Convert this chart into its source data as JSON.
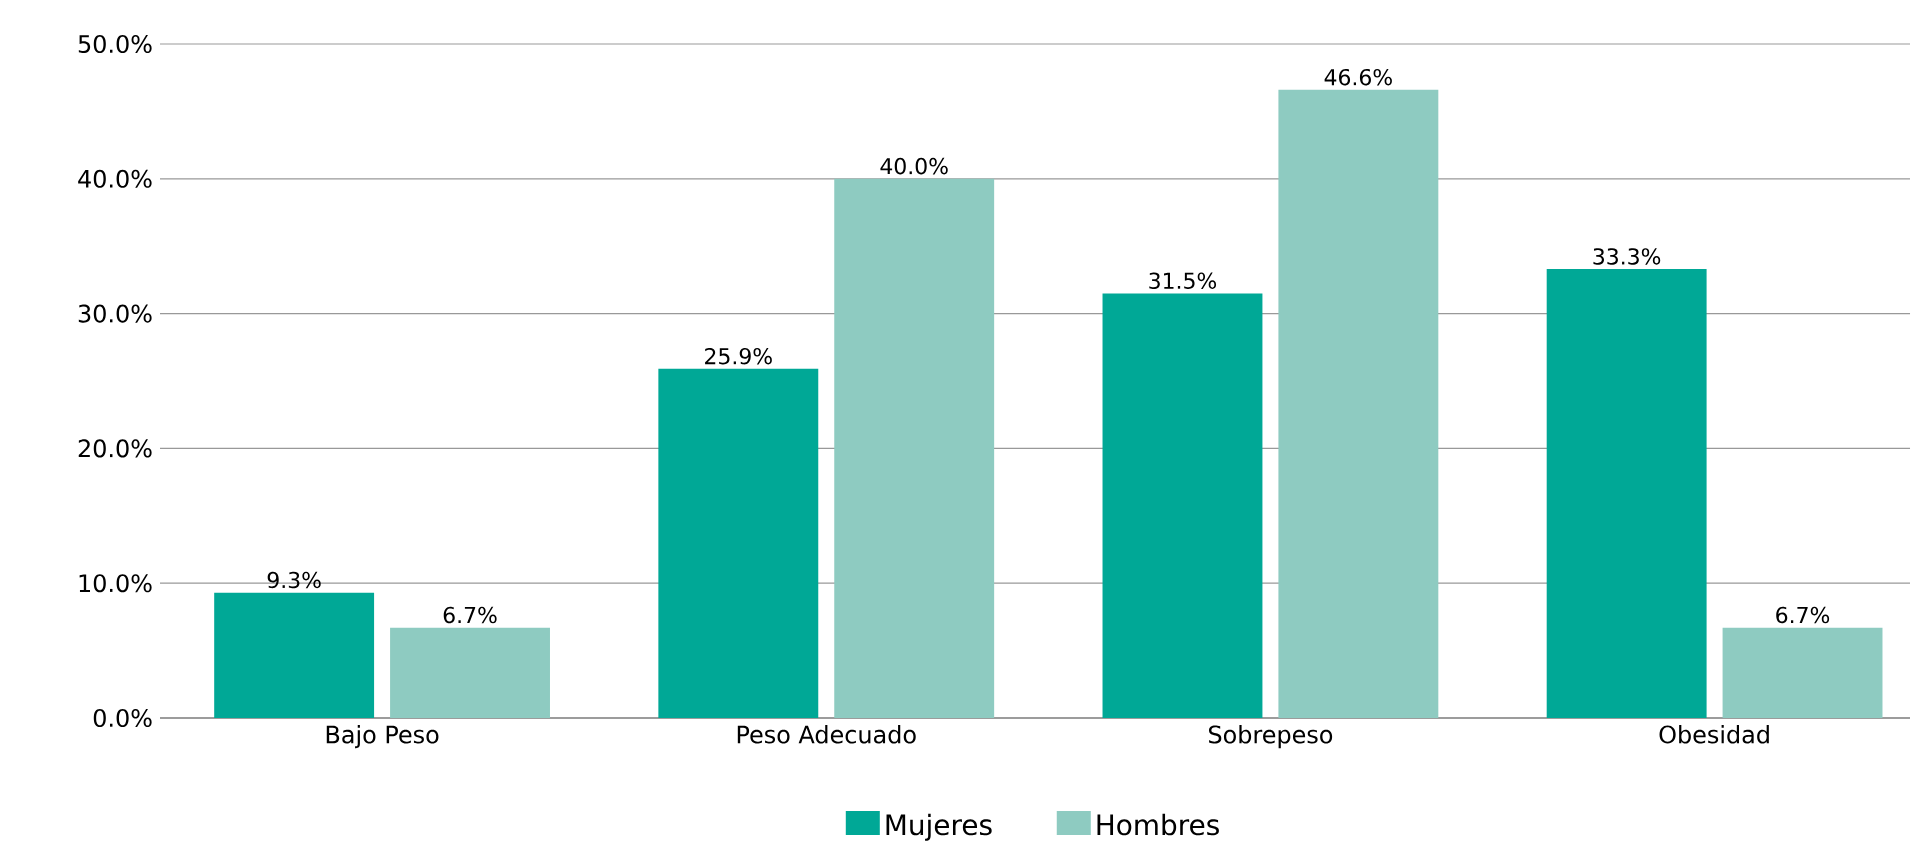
{
  "chart_data": {
    "type": "bar",
    "categories": [
      "Bajo Peso",
      "Peso Adecuado",
      "Sobrepeso",
      "Obesidad"
    ],
    "series": [
      {
        "name": "Mujeres",
        "color": "#00a896",
        "values": [
          9.3,
          25.9,
          31.5,
          33.3
        ],
        "value_labels": [
          "9.3%",
          "25.9%",
          "31.5%",
          "33.3%"
        ]
      },
      {
        "name": "Hombres",
        "color": "#8ecbc1",
        "values": [
          6.7,
          40.0,
          46.6,
          6.7
        ],
        "value_labels": [
          "6.7%",
          "40.0%",
          "46.6%",
          "6.7%"
        ]
      }
    ],
    "ylim": [
      0,
      50
    ],
    "yticks": [
      {
        "value": 0,
        "label": "0.0%"
      },
      {
        "value": 10,
        "label": "10.0%"
      },
      {
        "value": 20,
        "label": "20.0%"
      },
      {
        "value": 30,
        "label": "30.0%"
      },
      {
        "value": 40,
        "label": "40.0%"
      },
      {
        "value": 50,
        "label": "50.0%"
      }
    ],
    "grid": "y",
    "legend": "bottom"
  }
}
